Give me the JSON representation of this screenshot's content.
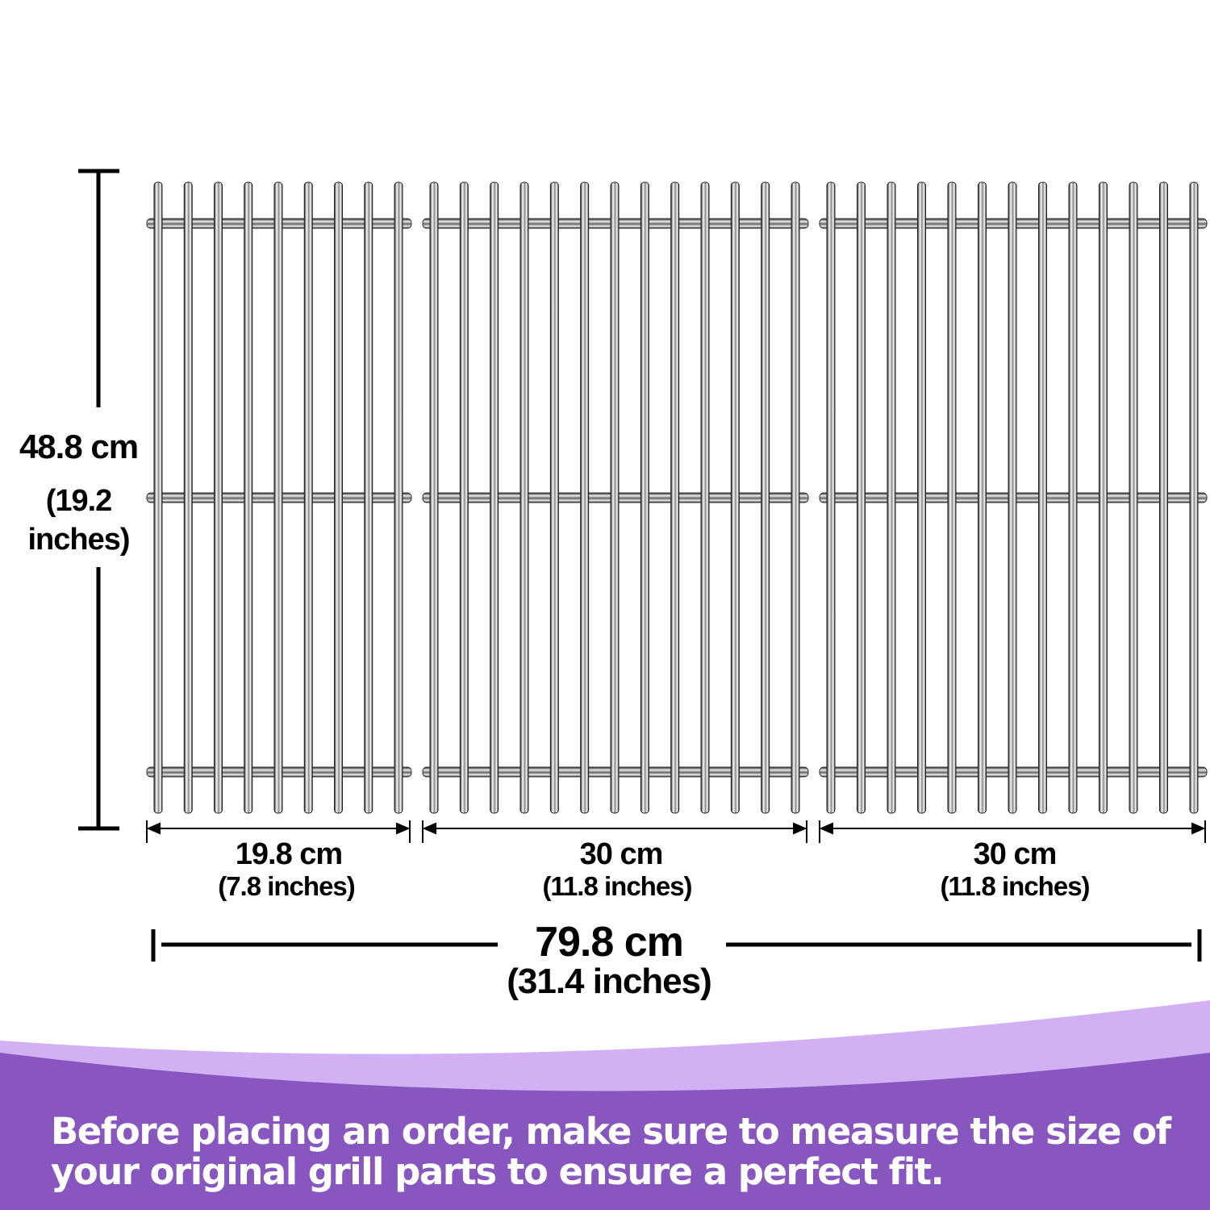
{
  "height_dimension": {
    "value": "48.8 cm",
    "imperial_line1": "(19.2",
    "imperial_line2": "inches)"
  },
  "grates": [
    {
      "width": "19.8 cm",
      "imperial": "(7.8 inches)",
      "rods": 9
    },
    {
      "width": "30 cm",
      "imperial": "(11.8 inches)",
      "rods": 13
    },
    {
      "width": "30 cm",
      "imperial": "(11.8 inches)",
      "rods": 13
    }
  ],
  "total_width": {
    "value": "79.8 cm",
    "imperial": "(31.4 inches)"
  },
  "banner": {
    "text": "Before placing an order, make sure to measure the size of your original grill parts to ensure a perfect fit."
  },
  "colors": {
    "banner": "#8757bf",
    "banner_light": "#d3b0f4",
    "ink": "#000000"
  }
}
